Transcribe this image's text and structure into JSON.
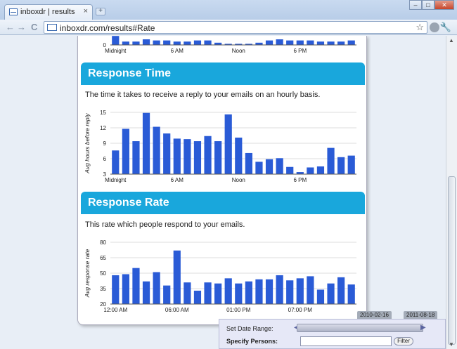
{
  "browser": {
    "tab_title": "inboxdr | results",
    "tab_close": "×",
    "new_tab": "+",
    "url": "inboxdr.com/results#Rate",
    "back": "←",
    "forward": "→",
    "reload": "C",
    "star": "☆",
    "wrench": "🔧",
    "window_buttons": [
      "–",
      "□",
      "✕"
    ]
  },
  "sections": {
    "response_time": {
      "title": "Response Time",
      "description": "The time it takes to receive a reply to your emails on an hourly basis."
    },
    "response_rate": {
      "title": "Response Rate",
      "description": "This rate which people respond to your emails."
    }
  },
  "top_chart": {
    "tick_labels": [
      "Midnight",
      "6 AM",
      "Noon",
      "6 PM"
    ],
    "y_zero": "0"
  },
  "filter": {
    "date_start": "2010-02-16",
    "date_end": "2011-08-18",
    "date_range_label": "Set Date Range:",
    "persons_label": "Specify Persons:",
    "persons_value": "",
    "filter_button": "Filter"
  },
  "chart_data": [
    {
      "type": "bar",
      "title": "",
      "xlabel": "",
      "ylabel": "",
      "categories": [
        "0",
        "1",
        "2",
        "3",
        "4",
        "5",
        "6",
        "7",
        "8",
        "9",
        "10",
        "11",
        "12",
        "13",
        "14",
        "15",
        "16",
        "17",
        "18",
        "19",
        "20",
        "21",
        "22",
        "23"
      ],
      "values": [
        8,
        3,
        3,
        5,
        4,
        4,
        3,
        3,
        4,
        4,
        2,
        1,
        1,
        1,
        2,
        4,
        5,
        4,
        4,
        4,
        3,
        3,
        3,
        4
      ],
      "x_tick_labels": [
        "Midnight",
        "6 AM",
        "Noon",
        "6 PM"
      ],
      "color": "#2a5bd6"
    },
    {
      "type": "bar",
      "title": "Response Time",
      "ylabel": "Avg hours before reply",
      "ylim": [
        3,
        15
      ],
      "y_ticks": [
        "3",
        "6",
        "9",
        "12",
        "15"
      ],
      "categories": [
        "0",
        "1",
        "2",
        "3",
        "4",
        "5",
        "6",
        "7",
        "8",
        "9",
        "10",
        "11",
        "12",
        "13",
        "14",
        "15",
        "16",
        "17",
        "18",
        "19",
        "20",
        "21",
        "22",
        "23"
      ],
      "values": [
        7.6,
        11.8,
        9.4,
        14.9,
        12.2,
        10.9,
        9.9,
        9.8,
        9.4,
        10.4,
        9.4,
        14.6,
        10.1,
        7.1,
        5.4,
        5.9,
        6.1,
        4.4,
        3.4,
        4.3,
        4.5,
        8.1,
        6.3,
        6.6
      ],
      "x_tick_labels": [
        "Midnight",
        "6 AM",
        "Noon",
        "6 PM"
      ],
      "color": "#2a5bd6"
    },
    {
      "type": "bar",
      "title": "Response Rate",
      "ylabel": "Avg response rate",
      "ylim": [
        20,
        80
      ],
      "y_ticks": [
        "20",
        "35",
        "50",
        "65",
        "80"
      ],
      "categories": [
        "0",
        "1",
        "2",
        "3",
        "4",
        "5",
        "6",
        "7",
        "8",
        "9",
        "10",
        "11",
        "12",
        "13",
        "14",
        "15",
        "16",
        "17",
        "18",
        "19",
        "20",
        "21",
        "22",
        "23"
      ],
      "values": [
        48,
        49,
        55,
        42,
        51,
        38,
        72,
        41,
        33,
        41,
        40,
        45,
        40,
        42,
        44,
        44,
        48,
        43,
        45,
        47,
        34,
        40,
        46,
        39
      ],
      "x_tick_labels": [
        "12:00 AM",
        "06:00 AM",
        "01:00 PM",
        "07:00 PM"
      ],
      "color": "#2a5bd6"
    }
  ]
}
